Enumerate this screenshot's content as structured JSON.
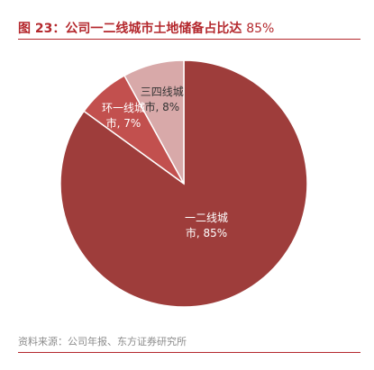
{
  "header": {
    "title": "图 23：公司一二线城市土地储备占比达",
    "title_pct": "85%"
  },
  "source": "资料来源：公司年报、东方证券研究所",
  "chart_data": {
    "type": "pie",
    "title": "图 23：公司一二线城市土地储备占比达 85%",
    "slices": [
      {
        "label_line1": "一二线城",
        "label_line2": "市, 85%",
        "value": 85,
        "color": "#9e3d3b",
        "text_color": "#ffffff"
      },
      {
        "label_line1": "环一线城",
        "label_line2": "市, 7%",
        "value": 7,
        "color": "#c2504e",
        "text_color": "#ffffff"
      },
      {
        "label_line1": "三四线城",
        "label_line2": "市, 8%",
        "value": 8,
        "color": "#d8a9a9",
        "text_color": "#333333"
      }
    ]
  }
}
